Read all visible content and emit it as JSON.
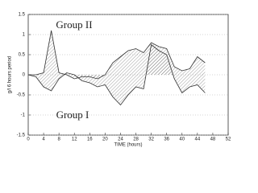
{
  "chart_data": {
    "type": "line",
    "xlabel": "TIME (hours)",
    "ylabel": "g/l 6 hours period",
    "annotations": [
      "Group II",
      "Group I"
    ],
    "x": [
      0,
      2,
      4,
      6,
      8,
      10,
      12,
      14,
      16,
      18,
      20,
      22,
      24,
      26,
      28,
      30,
      32,
      34,
      36,
      38,
      40,
      42,
      44,
      46
    ],
    "series": [
      {
        "name": "Group II",
        "color": "#333333",
        "values": [
          0,
          0,
          0.05,
          1.1,
          0.05,
          0,
          -0.1,
          -0.05,
          -0.05,
          -0.1,
          0,
          0.3,
          0.45,
          0.6,
          0.65,
          0.55,
          0.8,
          0.7,
          0.65,
          0.2,
          0.1,
          0.15,
          0.45,
          0.3
        ]
      },
      {
        "name": "Group I",
        "color": "#333333",
        "values": [
          0,
          -0.05,
          -0.3,
          -0.4,
          -0.1,
          0.05,
          0,
          -0.15,
          -0.2,
          -0.3,
          -0.25,
          -0.55,
          -0.75,
          -0.5,
          -0.3,
          -0.35,
          0.75,
          0.6,
          0.5,
          -0.1,
          -0.45,
          -0.3,
          -0.25,
          -0.45
        ]
      }
    ],
    "xlim": [
      0,
      52
    ],
    "xticks": [
      0,
      4,
      8,
      12,
      16,
      20,
      24,
      28,
      32,
      36,
      40,
      44,
      48,
      52
    ],
    "ylim": [
      -1.5,
      1.5
    ],
    "yticks": [
      -1.5,
      -1,
      -0.5,
      0,
      0.5,
      1,
      1.5
    ],
    "grid": true
  }
}
